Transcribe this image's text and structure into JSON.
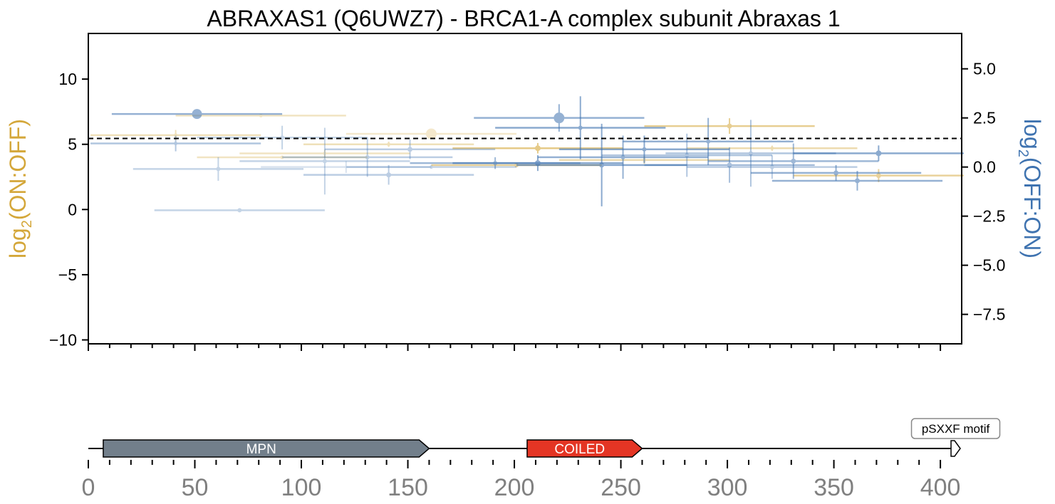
{
  "chart_data": {
    "type": "scatter",
    "title": "ABRAXAS1 (Q6UWZ7) - BRCA1-A complex subunit Abraxas 1",
    "left_axis": {
      "label_main": "log",
      "label_sub": "2",
      "label_rest": "(ON:OFF)",
      "color": "#d4a73a",
      "ylim": [
        -10.3,
        13.5
      ],
      "ticks": [
        10,
        5,
        0,
        -5,
        -10
      ],
      "tick_labels": [
        "10",
        "5",
        "0",
        "−5",
        "−10"
      ]
    },
    "right_axis": {
      "label_main": "log",
      "label_sub": "2",
      "label_rest": "(OFF:ON)",
      "color": "#3f73b0",
      "ylim": [
        -9.0,
        6.8
      ],
      "ticks": [
        5.0,
        2.5,
        0.0,
        -2.5,
        -5.0,
        -7.5
      ],
      "tick_labels": [
        "5.0",
        "2.5",
        "0.0",
        "−2.5",
        "−5.0",
        "−7.5"
      ]
    },
    "threshold_left": 5.45,
    "xlim": [
      0,
      410
    ],
    "x_ticks": [
      0,
      50,
      100,
      150,
      200,
      250,
      300,
      350,
      400
    ],
    "x_tick_labels": [
      "0",
      "50",
      "100",
      "150",
      "200",
      "250",
      "300",
      "350",
      "400"
    ],
    "series": [
      {
        "axis": "left",
        "color": "#d4a73a",
        "points": [
          {
            "x": 41,
            "y": 5.7,
            "xmin": 1,
            "xmax": 81,
            "yerr": 0.4,
            "size": 2.5,
            "alpha": 0.35
          },
          {
            "x": 81,
            "y": 7.2,
            "xmin": 41,
            "xmax": 121,
            "yerr": 0,
            "size": 2.5,
            "alpha": 0.3
          },
          {
            "x": 91,
            "y": 4.0,
            "xmin": 51,
            "xmax": 131,
            "yerr": 0,
            "size": 2.5,
            "alpha": 0.3
          },
          {
            "x": 111,
            "y": 4.3,
            "xmin": 71,
            "xmax": 151,
            "yerr": 0.3,
            "size": 2.5,
            "alpha": 0.3
          },
          {
            "x": 141,
            "y": 5.0,
            "xmin": 101,
            "xmax": 181,
            "yerr": 0.2,
            "size": 2.5,
            "alpha": 0.35
          },
          {
            "x": 161,
            "y": 5.8,
            "xmin": 121,
            "xmax": 201,
            "yerr": 0,
            "size": 7.5,
            "alpha": 0.25
          },
          {
            "x": 201,
            "y": 3.4,
            "xmin": 161,
            "xmax": 241,
            "yerr": 0,
            "size": 3,
            "alpha": 0.5
          },
          {
            "x": 211,
            "y": 4.7,
            "xmin": 171,
            "xmax": 251,
            "yerr": 0.4,
            "size": 4,
            "alpha": 0.6
          },
          {
            "x": 261,
            "y": 3.8,
            "xmin": 221,
            "xmax": 301,
            "yerr": 0.3,
            "size": 2.5,
            "alpha": 0.4
          },
          {
            "x": 301,
            "y": 6.4,
            "xmin": 261,
            "xmax": 341,
            "yerr": 0.6,
            "size": 3.5,
            "alpha": 0.55
          },
          {
            "x": 321,
            "y": 4.7,
            "xmin": 281,
            "xmax": 361,
            "yerr": 0.2,
            "size": 2.5,
            "alpha": 0.4
          },
          {
            "x": 371,
            "y": 2.6,
            "xmin": 331,
            "xmax": 411,
            "yerr": 0.5,
            "size": 3.5,
            "alpha": 0.5
          }
        ]
      },
      {
        "axis": "right",
        "color": "#3f73b0",
        "points": [
          {
            "x": 41,
            "y": 1.2,
            "xmin": 1,
            "xmax": 81,
            "yerr": 0.4,
            "size": 2.5,
            "alpha": 0.4
          },
          {
            "x": 51,
            "y": 2.7,
            "xmin": 11,
            "xmax": 91,
            "yerr": 0,
            "size": 7,
            "alpha": 0.55
          },
          {
            "x": 61,
            "y": -0.1,
            "xmin": 21,
            "xmax": 101,
            "yerr": 0.6,
            "size": 3,
            "alpha": 0.3
          },
          {
            "x": 71,
            "y": -2.2,
            "xmin": 31,
            "xmax": 111,
            "yerr": 0,
            "size": 3,
            "alpha": 0.3
          },
          {
            "x": 91,
            "y": 1.5,
            "xmin": 51,
            "xmax": 131,
            "yerr": 0.6,
            "size": 3,
            "alpha": 0.3
          },
          {
            "x": 111,
            "y": 0.3,
            "xmin": 71,
            "xmax": 151,
            "yerr": 1.7,
            "size": 3,
            "alpha": 0.3
          },
          {
            "x": 121,
            "y": 0.0,
            "xmin": 81,
            "xmax": 161,
            "yerr": 0.3,
            "size": 2,
            "alpha": 0.2
          },
          {
            "x": 131,
            "y": 0.5,
            "xmin": 91,
            "xmax": 171,
            "yerr": 1.0,
            "size": 3,
            "alpha": 0.35
          },
          {
            "x": 141,
            "y": -0.4,
            "xmin": 101,
            "xmax": 181,
            "yerr": 0.5,
            "size": 3.5,
            "alpha": 0.35
          },
          {
            "x": 151,
            "y": 0.9,
            "xmin": 111,
            "xmax": 191,
            "yerr": 0.5,
            "size": 3.5,
            "alpha": 0.35
          },
          {
            "x": 161,
            "y": 0.0,
            "xmin": 121,
            "xmax": 201,
            "yerr": 0,
            "size": 2.5,
            "alpha": 0.3
          },
          {
            "x": 191,
            "y": 0.2,
            "xmin": 151,
            "xmax": 231,
            "yerr": 0.3,
            "size": 3,
            "alpha": 0.5
          },
          {
            "x": 211,
            "y": 0.2,
            "xmin": 171,
            "xmax": 251,
            "yerr": 0.4,
            "size": 4,
            "alpha": 0.6
          },
          {
            "x": 221,
            "y": 2.5,
            "xmin": 181,
            "xmax": 261,
            "yerr": 0.7,
            "size": 7.5,
            "alpha": 0.55
          },
          {
            "x": 231,
            "y": 2.0,
            "xmin": 191,
            "xmax": 271,
            "yerr": 1.6,
            "size": 3,
            "alpha": 0.6
          },
          {
            "x": 241,
            "y": 0.1,
            "xmin": 201,
            "xmax": 281,
            "yerr": 2.1,
            "size": 3.5,
            "alpha": 0.6
          },
          {
            "x": 251,
            "y": 0.5,
            "xmin": 211,
            "xmax": 291,
            "yerr": 1.1,
            "size": 3,
            "alpha": 0.55
          },
          {
            "x": 261,
            "y": 0.9,
            "xmin": 221,
            "xmax": 301,
            "yerr": 0.7,
            "size": 3,
            "alpha": 0.6
          },
          {
            "x": 281,
            "y": 0.6,
            "xmin": 241,
            "xmax": 321,
            "yerr": 1.1,
            "size": 3,
            "alpha": 0.4
          },
          {
            "x": 291,
            "y": 1.3,
            "xmin": 251,
            "xmax": 331,
            "yerr": 1.2,
            "size": 3,
            "alpha": 0.55
          },
          {
            "x": 301,
            "y": 0.1,
            "xmin": 261,
            "xmax": 341,
            "yerr": 0.9,
            "size": 3.5,
            "alpha": 0.45
          },
          {
            "x": 311,
            "y": 0.7,
            "xmin": 271,
            "xmax": 351,
            "yerr": 1.7,
            "size": 3,
            "alpha": 0.4
          },
          {
            "x": 321,
            "y": 0.0,
            "xmin": 281,
            "xmax": 361,
            "yerr": 0.6,
            "size": 3,
            "alpha": 0.35
          },
          {
            "x": 331,
            "y": 0.3,
            "xmin": 291,
            "xmax": 371,
            "yerr": 0.9,
            "size": 3.5,
            "alpha": 0.5
          },
          {
            "x": 351,
            "y": -0.3,
            "xmin": 311,
            "xmax": 391,
            "yerr": 0.4,
            "size": 3.5,
            "alpha": 0.55
          },
          {
            "x": 361,
            "y": -0.7,
            "xmin": 321,
            "xmax": 401,
            "yerr": 0.5,
            "size": 3.5,
            "alpha": 0.55
          },
          {
            "x": 371,
            "y": 0.7,
            "xmin": 331,
            "xmax": 411,
            "yerr": 0.4,
            "size": 4,
            "alpha": 0.6
          }
        ]
      }
    ],
    "domains": [
      {
        "label": "MPN",
        "start": 7,
        "end": 160,
        "color": "#727f8b",
        "text_color": "#ffffff"
      },
      {
        "label": "COILED",
        "start": 206,
        "end": 260,
        "color": "#e43524",
        "text_color": "#ffffff"
      },
      {
        "label": "pSXXF motif",
        "start": 405,
        "end": 408,
        "color": "#ffffff",
        "text_color": "#000000",
        "callout": true
      }
    ]
  }
}
